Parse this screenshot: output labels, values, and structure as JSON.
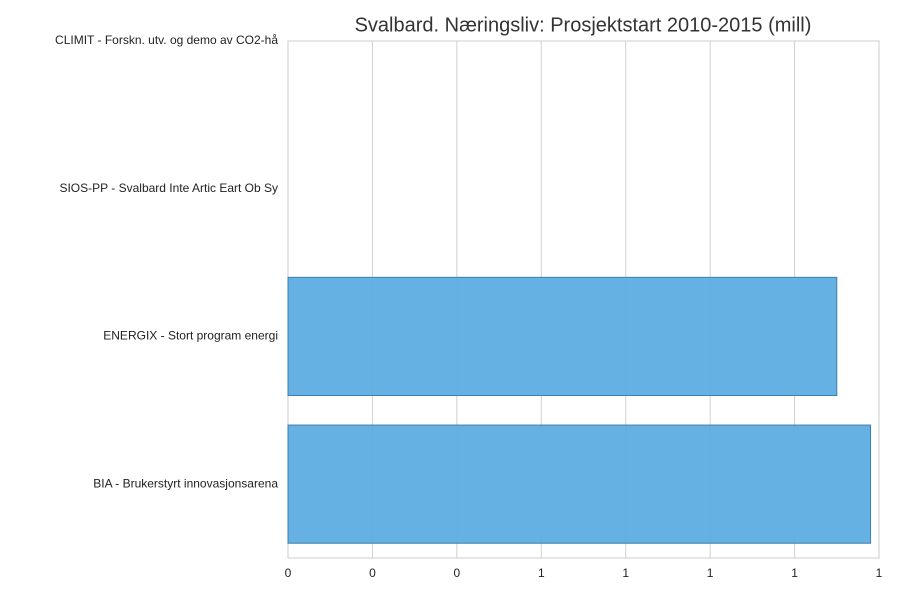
{
  "chart_data": {
    "type": "barh",
    "title": "Svalbard. Næringsliv: Prosjektstart 2010-2015 (mill)",
    "categories": [
      "CLIMIT - Forskn. utv. og demo av CO2-hå",
      "SIOS-PP - Svalbard Inte Artic Eart Ob Sy",
      "ENERGIX - Stort program energi",
      "BIA - Brukerstyrt innovasjonsarena"
    ],
    "values": [
      0,
      0,
      1.3,
      1.38
    ],
    "color": "#5dade2",
    "xlim": [
      0,
      1.4
    ],
    "xticks": [
      0,
      {
        "value": 0.2,
        "label": "0"
      },
      {
        "value": 0.4,
        "label": "0"
      },
      {
        "value": 0.6,
        "label": "1"
      },
      {
        "value": 0.8,
        "label": "1"
      },
      1,
      {
        "value": 1.2,
        "label": "1"
      },
      {
        "value": 1.4,
        "label": "1"
      }
    ],
    "grid": true
  }
}
